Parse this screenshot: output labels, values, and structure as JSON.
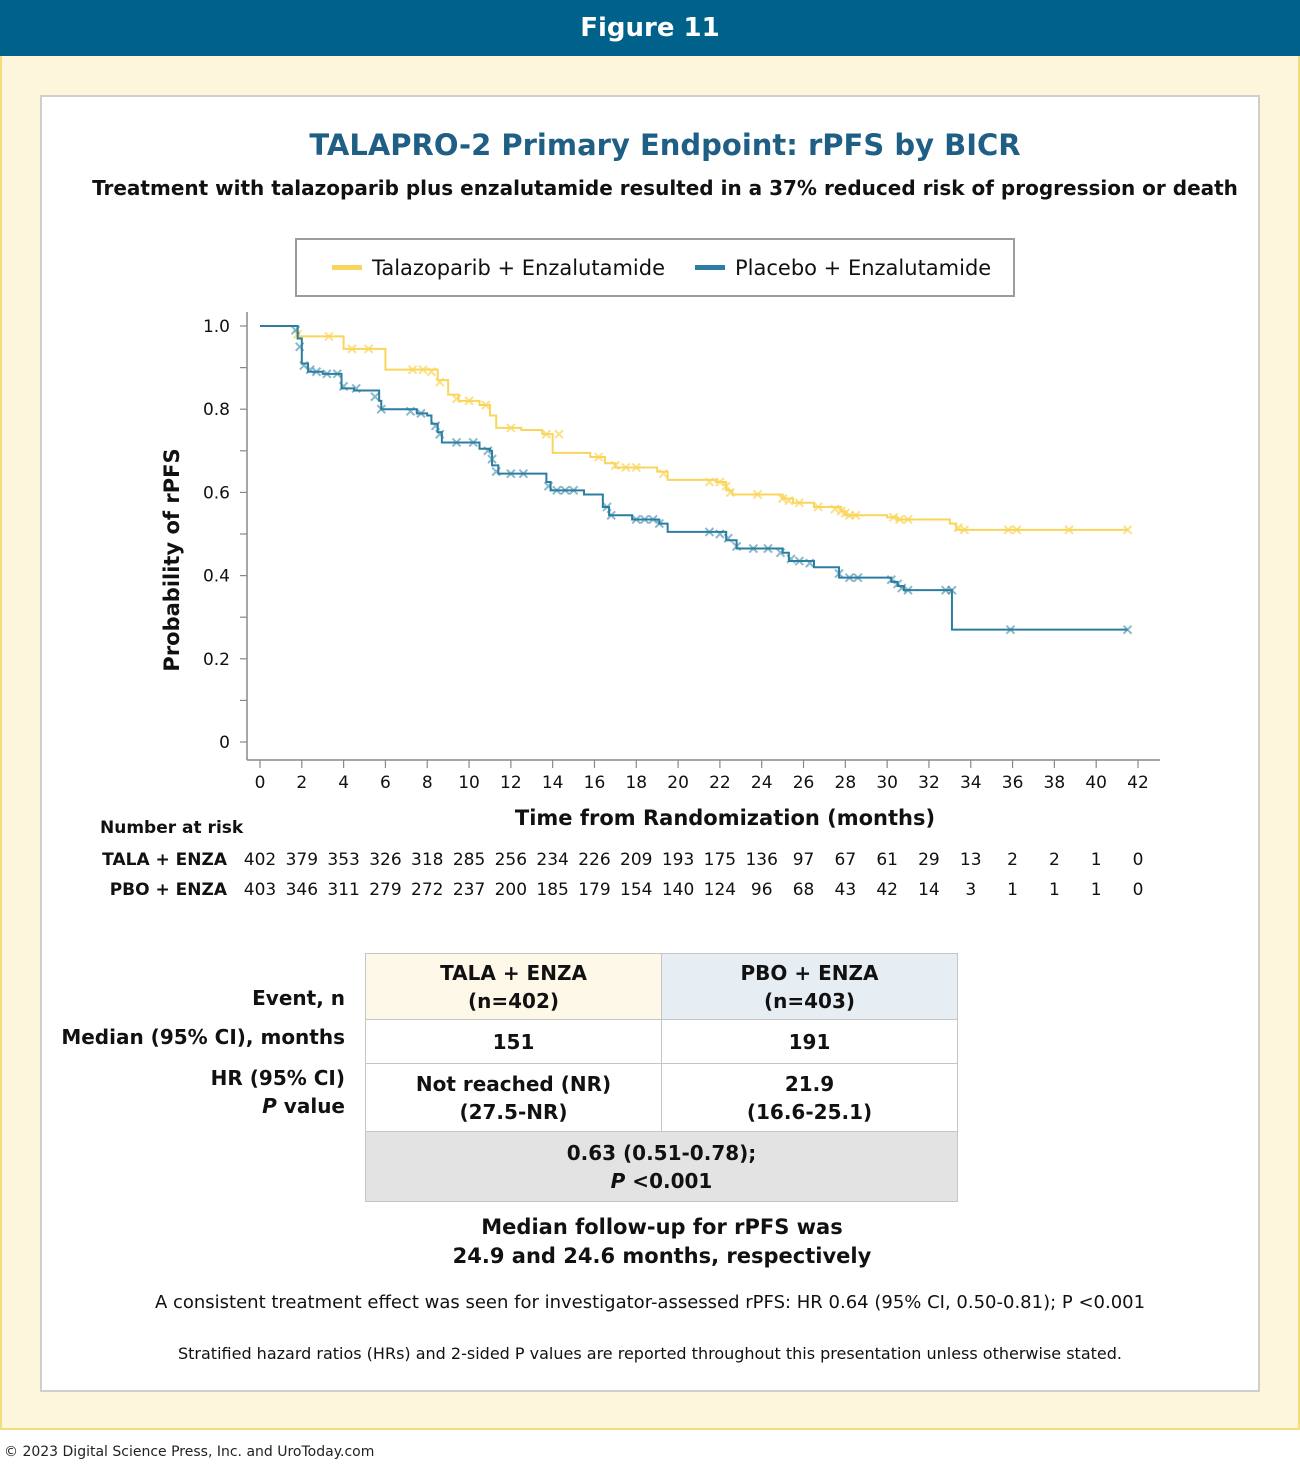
{
  "header": {
    "figure_label": "Figure 11"
  },
  "chart_data": {
    "type": "line",
    "title": "TALAPRO-2 Primary Endpoint: rPFS by BICR",
    "subtitle": "Treatment with talazoparib plus enzalutamide resulted in a 37% reduced risk of progression or death",
    "xlabel": "Time from Randomization (months)",
    "ylabel": "Probability of rPFS",
    "xlim": [
      0,
      42
    ],
    "ylim": [
      0,
      1.0
    ],
    "x_ticks": [
      "0",
      "2",
      "4",
      "6",
      "8",
      "10",
      "12",
      "14",
      "16",
      "18",
      "20",
      "22",
      "24",
      "26",
      "28",
      "30",
      "32",
      "34",
      "36",
      "38",
      "40",
      "42"
    ],
    "y_ticks": [
      "0",
      "0.2",
      "0.4",
      "0.6",
      "0.8",
      "1.0"
    ],
    "y_tick_values": [
      0,
      0.2,
      0.4,
      0.6,
      0.8,
      1.0
    ],
    "legend_position": "top",
    "series": [
      {
        "name": "Talazoparib + Enzalutamide",
        "color": "#f9d55c",
        "step_points": [
          [
            0,
            1.0
          ],
          [
            1.6,
            1.0
          ],
          [
            1.8,
            0.975
          ],
          [
            3.5,
            0.975
          ],
          [
            4.0,
            0.945
          ],
          [
            5.5,
            0.945
          ],
          [
            6.0,
            0.895
          ],
          [
            8.0,
            0.895
          ],
          [
            8.5,
            0.87
          ],
          [
            9.0,
            0.835
          ],
          [
            9.5,
            0.82
          ],
          [
            10.5,
            0.81
          ],
          [
            11.0,
            0.785
          ],
          [
            11.3,
            0.755
          ],
          [
            12.5,
            0.75
          ],
          [
            13.5,
            0.74
          ],
          [
            14.0,
            0.695
          ],
          [
            15.8,
            0.685
          ],
          [
            16.5,
            0.67
          ],
          [
            17.0,
            0.66
          ],
          [
            19.0,
            0.65
          ],
          [
            19.5,
            0.63
          ],
          [
            21.8,
            0.625
          ],
          [
            22.3,
            0.605
          ],
          [
            22.6,
            0.595
          ],
          [
            25.0,
            0.585
          ],
          [
            25.5,
            0.575
          ],
          [
            26.5,
            0.565
          ],
          [
            27.8,
            0.555
          ],
          [
            28.0,
            0.545
          ],
          [
            30.0,
            0.54
          ],
          [
            30.5,
            0.535
          ],
          [
            33.0,
            0.525
          ],
          [
            33.3,
            0.51
          ],
          [
            41.5,
            0.51
          ]
        ],
        "censor_marks": [
          [
            1.8,
            0.98
          ],
          [
            3.3,
            0.975
          ],
          [
            4.4,
            0.945
          ],
          [
            5.2,
            0.945
          ],
          [
            7.3,
            0.895
          ],
          [
            7.8,
            0.895
          ],
          [
            8.2,
            0.89
          ],
          [
            8.6,
            0.865
          ],
          [
            9.4,
            0.825
          ],
          [
            10.0,
            0.82
          ],
          [
            10.8,
            0.81
          ],
          [
            12.0,
            0.755
          ],
          [
            13.7,
            0.74
          ],
          [
            14.3,
            0.74
          ],
          [
            16.2,
            0.685
          ],
          [
            17.0,
            0.665
          ],
          [
            17.5,
            0.66
          ],
          [
            18.0,
            0.66
          ],
          [
            19.3,
            0.645
          ],
          [
            21.5,
            0.625
          ],
          [
            22.0,
            0.625
          ],
          [
            22.3,
            0.615
          ],
          [
            22.5,
            0.6
          ],
          [
            23.8,
            0.595
          ],
          [
            25.0,
            0.585
          ],
          [
            25.3,
            0.58
          ],
          [
            25.8,
            0.575
          ],
          [
            26.7,
            0.565
          ],
          [
            27.5,
            0.56
          ],
          [
            27.8,
            0.555
          ],
          [
            28.0,
            0.55
          ],
          [
            28.2,
            0.545
          ],
          [
            28.5,
            0.545
          ],
          [
            30.3,
            0.54
          ],
          [
            30.6,
            0.535
          ],
          [
            31.0,
            0.535
          ],
          [
            33.4,
            0.515
          ],
          [
            33.7,
            0.51
          ],
          [
            35.8,
            0.51
          ],
          [
            36.2,
            0.51
          ],
          [
            38.7,
            0.51
          ],
          [
            41.5,
            0.51
          ]
        ]
      },
      {
        "name": "Placebo + Enzalutamide",
        "color": "#2b7ea1",
        "step_points": [
          [
            0,
            1.0
          ],
          [
            1.6,
            1.0
          ],
          [
            1.8,
            0.97
          ],
          [
            2.0,
            0.91
          ],
          [
            2.3,
            0.89
          ],
          [
            3.0,
            0.885
          ],
          [
            3.6,
            0.885
          ],
          [
            3.9,
            0.85
          ],
          [
            4.5,
            0.845
          ],
          [
            5.2,
            0.845
          ],
          [
            5.7,
            0.82
          ],
          [
            5.8,
            0.8
          ],
          [
            7.5,
            0.79
          ],
          [
            8.0,
            0.785
          ],
          [
            8.2,
            0.765
          ],
          [
            8.5,
            0.745
          ],
          [
            8.7,
            0.72
          ],
          [
            9.8,
            0.72
          ],
          [
            10.5,
            0.705
          ],
          [
            11.0,
            0.7
          ],
          [
            11.1,
            0.665
          ],
          [
            11.4,
            0.645
          ],
          [
            13.5,
            0.645
          ],
          [
            13.7,
            0.625
          ],
          [
            13.9,
            0.605
          ],
          [
            15.5,
            0.595
          ],
          [
            16.0,
            0.595
          ],
          [
            16.4,
            0.565
          ],
          [
            16.7,
            0.545
          ],
          [
            17.5,
            0.545
          ],
          [
            17.8,
            0.535
          ],
          [
            18.5,
            0.535
          ],
          [
            19.1,
            0.525
          ],
          [
            19.5,
            0.505
          ],
          [
            21.5,
            0.505
          ],
          [
            22.3,
            0.485
          ],
          [
            22.8,
            0.465
          ],
          [
            25.0,
            0.455
          ],
          [
            25.3,
            0.435
          ],
          [
            26.5,
            0.42
          ],
          [
            27.5,
            0.42
          ],
          [
            27.7,
            0.395
          ],
          [
            30.0,
            0.395
          ],
          [
            30.2,
            0.385
          ],
          [
            30.5,
            0.375
          ],
          [
            30.8,
            0.365
          ],
          [
            33.0,
            0.365
          ],
          [
            33.1,
            0.27
          ],
          [
            41.5,
            0.27
          ]
        ],
        "censor_marks": [
          [
            1.7,
            0.99
          ],
          [
            1.9,
            0.95
          ],
          [
            2.1,
            0.905
          ],
          [
            2.4,
            0.895
          ],
          [
            2.7,
            0.89
          ],
          [
            3.2,
            0.885
          ],
          [
            3.7,
            0.885
          ],
          [
            4.0,
            0.855
          ],
          [
            4.6,
            0.85
          ],
          [
            5.5,
            0.83
          ],
          [
            5.8,
            0.8
          ],
          [
            7.2,
            0.795
          ],
          [
            7.7,
            0.79
          ],
          [
            8.4,
            0.76
          ],
          [
            8.6,
            0.74
          ],
          [
            9.4,
            0.72
          ],
          [
            10.2,
            0.72
          ],
          [
            10.9,
            0.7
          ],
          [
            11.1,
            0.68
          ],
          [
            11.3,
            0.65
          ],
          [
            12.0,
            0.645
          ],
          [
            12.6,
            0.645
          ],
          [
            13.8,
            0.615
          ],
          [
            14.2,
            0.605
          ],
          [
            14.6,
            0.605
          ],
          [
            15.0,
            0.605
          ],
          [
            16.6,
            0.565
          ],
          [
            16.8,
            0.545
          ],
          [
            18.0,
            0.535
          ],
          [
            18.4,
            0.535
          ],
          [
            18.8,
            0.535
          ],
          [
            19.1,
            0.525
          ],
          [
            21.5,
            0.505
          ],
          [
            22.0,
            0.5
          ],
          [
            22.4,
            0.49
          ],
          [
            22.8,
            0.47
          ],
          [
            23.6,
            0.465
          ],
          [
            24.3,
            0.465
          ],
          [
            24.9,
            0.455
          ],
          [
            25.4,
            0.44
          ],
          [
            25.8,
            0.435
          ],
          [
            26.3,
            0.43
          ],
          [
            27.7,
            0.405
          ],
          [
            28.2,
            0.395
          ],
          [
            28.6,
            0.395
          ],
          [
            30.2,
            0.39
          ],
          [
            30.5,
            0.38
          ],
          [
            30.7,
            0.37
          ],
          [
            31.0,
            0.365
          ],
          [
            32.8,
            0.365
          ],
          [
            33.1,
            0.365
          ],
          [
            35.9,
            0.27
          ],
          [
            41.5,
            0.27
          ]
        ]
      }
    ]
  },
  "legend": [
    {
      "label": "Talazoparib + Enzalutamide",
      "color": "#f9d55c"
    },
    {
      "label": "Placebo + Enzalutamide",
      "color": "#2b7ea1"
    }
  ],
  "risk_table": {
    "heading": "Number at risk",
    "rows": [
      {
        "label": "TALA + ENZA",
        "values": [
          "402",
          "379",
          "353",
          "326",
          "318",
          "285",
          "256",
          "234",
          "226",
          "209",
          "193",
          "175",
          "136",
          "97",
          "67",
          "61",
          "29",
          "13",
          "2",
          "2",
          "1",
          "0"
        ]
      },
      {
        "label": "PBO + ENZA",
        "values": [
          "403",
          "346",
          "311",
          "279",
          "272",
          "237",
          "200",
          "185",
          "179",
          "154",
          "140",
          "124",
          "96",
          "68",
          "43",
          "42",
          "14",
          "3",
          "1",
          "1",
          "1",
          "0"
        ]
      }
    ]
  },
  "results": {
    "row_labels": {
      "event": "Event, n",
      "median": "Median (95% CI), months",
      "hr": "HR (95% CI)",
      "p_italic": "P",
      "p_rest": " value"
    },
    "col1_header": "TALA + ENZA",
    "col1_n": "(n=402)",
    "col2_header": "PBO + ENZA",
    "col2_n": "(n=403)",
    "event_col1": "151",
    "event_col2": "191",
    "median_col1_line1": "Not reached (NR)",
    "median_col1_line2": "(27.5-NR)",
    "median_col2_line1": "21.9",
    "median_col2_line2": "(16.6-25.1)",
    "hr_line1": "0.63 (0.51-0.78);",
    "hr_p_italic": "P",
    "hr_p_rest": " <0.001",
    "col1_bg": "#fdf8e8",
    "col2_bg": "#e6eef3",
    "hr_bg": "#e3e3e3"
  },
  "footnotes": {
    "followup_line1": "Median follow-up for rPFS was",
    "followup_line2": "24.9 and 24.6 months, respectively",
    "investigator": "A consistent treatment effect was seen for investigator-assessed rPFS: HR 0.64 (95% CI, 0.50-0.81); P <0.001",
    "stratified": "Stratified hazard ratios (HRs) and 2-sided P values are reported throughout this presentation unless otherwise stated.",
    "copyright": "© 2023 Digital Science Press, Inc. and UroToday.com"
  }
}
